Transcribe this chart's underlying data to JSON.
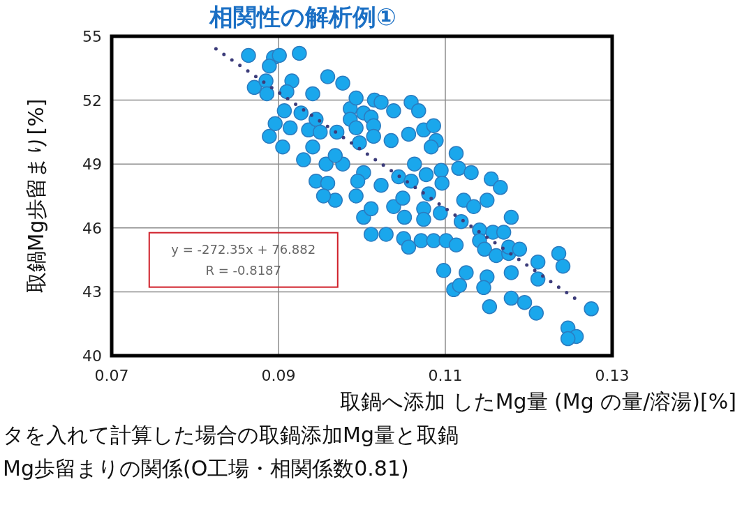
{
  "chart_data": {
    "type": "scatter",
    "title": "相関性の解析例①",
    "xlabel": "取鍋へ添加 したMg量 (Mg の量/溶湯)[%]",
    "ylabel": "取鍋Mg歩留まり[%]",
    "annotations": [
      "y = -272.35x + 76.882",
      "R = -0.8187",
      "タを入れて計算した場合の取鍋添加Mg量と取鍋",
      "Mg歩留まりの関係(O工場・相関係数0.81)"
    ],
    "xlim": [
      0.07,
      0.13
    ],
    "ylim": [
      40,
      55
    ],
    "xticks": [
      0.07,
      0.09,
      0.11,
      0.13
    ],
    "yticks": [
      40,
      43,
      46,
      49,
      52,
      55
    ],
    "grid": true,
    "series": [
      {
        "marker": "circle",
        "color": "#1aa7ec",
        "x": [
          0.0864,
          0.0894,
          0.0901,
          0.0889,
          0.0925,
          0.0959,
          0.0977,
          0.0871,
          0.0885,
          0.0886,
          0.0916,
          0.091,
          0.0941,
          0.0907,
          0.0896,
          0.0889,
          0.0905,
          0.0927,
          0.0914,
          0.0936,
          0.0945,
          0.095,
          0.093,
          0.0957,
          0.0977,
          0.0968,
          0.0941,
          0.097,
          0.0986,
          0.0986,
          0.0945,
          0.0959,
          0.0993,
          0.1015,
          0.1023,
          0.1038,
          0.1059,
          0.1068,
          0.1002,
          0.1011,
          0.0993,
          0.1014,
          0.1014,
          0.0997,
          0.1035,
          0.1056,
          0.1074,
          0.1086,
          0.1089,
          0.1083,
          0.1113,
          0.1002,
          0.0995,
          0.1023,
          0.1044,
          0.1063,
          0.1059,
          0.1077,
          0.1095,
          0.1096,
          0.1116,
          0.1131,
          0.1155,
          0.1166,
          0.0968,
          0.0954,
          0.0993,
          0.1002,
          0.1011,
          0.1038,
          0.1049,
          0.1051,
          0.1074,
          0.1074,
          0.108,
          0.1094,
          0.1122,
          0.1134,
          0.115,
          0.1179,
          0.1011,
          0.1029,
          0.105,
          0.1056,
          0.1071,
          0.1086,
          0.1101,
          0.1113,
          0.1119,
          0.1141,
          0.1141,
          0.1157,
          0.117,
          0.1147,
          0.1161,
          0.1176,
          0.1176,
          0.1189,
          0.1211,
          0.1236,
          0.1241,
          0.1098,
          0.1125,
          0.115,
          0.1146,
          0.1179,
          0.1211,
          0.111,
          0.1117,
          0.1179,
          0.1195,
          0.1209,
          0.1153,
          0.1275,
          0.1247,
          0.1257,
          0.1247
        ],
        "values": [
          54.1,
          54.0,
          54.1,
          53.6,
          54.2,
          53.1,
          52.8,
          52.6,
          52.9,
          52.3,
          52.9,
          52.4,
          52.3,
          51.5,
          50.9,
          50.3,
          49.8,
          51.4,
          50.7,
          50.6,
          51.1,
          50.5,
          49.2,
          49.0,
          49.0,
          49.4,
          49.8,
          50.5,
          51.6,
          51.1,
          48.2,
          48.1,
          52.1,
          52.0,
          51.9,
          51.5,
          51.9,
          51.5,
          51.4,
          51.2,
          50.7,
          50.8,
          50.3,
          50.0,
          50.1,
          50.4,
          50.6,
          50.8,
          50.1,
          49.8,
          49.5,
          48.6,
          48.2,
          48.0,
          48.4,
          49.0,
          48.2,
          48.5,
          48.7,
          48.1,
          48.8,
          48.6,
          48.3,
          47.9,
          47.3,
          47.5,
          47.5,
          46.5,
          46.9,
          47.0,
          47.4,
          46.5,
          46.9,
          46.4,
          47.6,
          46.7,
          47.3,
          47.0,
          47.3,
          46.5,
          45.7,
          45.7,
          45.5,
          45.1,
          45.4,
          45.4,
          45.4,
          45.2,
          46.3,
          45.9,
          45.4,
          45.8,
          45.8,
          45.0,
          44.7,
          44.8,
          45.1,
          45.0,
          44.4,
          44.8,
          44.2,
          44.0,
          43.9,
          43.7,
          43.2,
          43.9,
          43.6,
          43.1,
          43.3,
          42.7,
          42.5,
          42.0,
          42.3,
          42.2,
          41.3,
          40.9,
          40.8
        ]
      },
      {
        "type": "line",
        "color": "#3c3c7a",
        "line_style": "dotted",
        "x": [
          0.0825,
          0.1255
        ],
        "values": [
          54.41,
          42.7
        ]
      }
    ]
  }
}
